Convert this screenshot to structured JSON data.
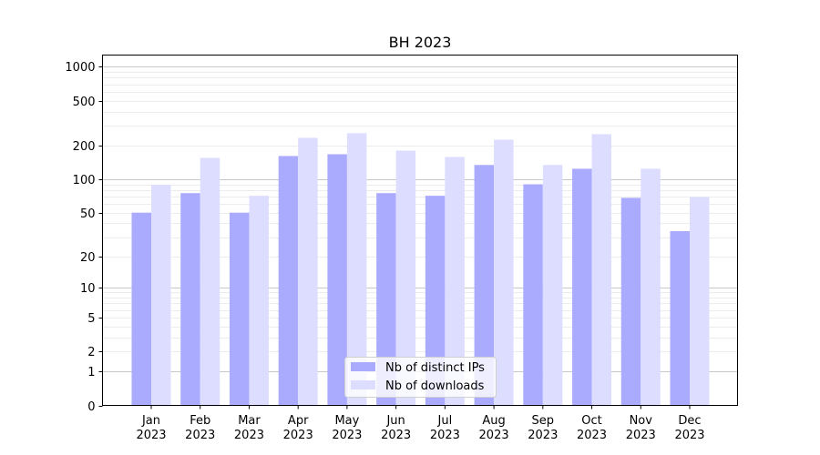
{
  "chart_data": {
    "type": "bar",
    "title": "BH 2023",
    "xlabel": "",
    "ylabel": "",
    "yscale": "log10(y+1)",
    "ylim": [
      0,
      1270
    ],
    "yticks": [
      0,
      1,
      2,
      5,
      10,
      20,
      50,
      100,
      200,
      500,
      1000
    ],
    "grid": true,
    "legend_position": "bottom-center",
    "categories": [
      "Jan\n2023",
      "Feb\n2023",
      "Mar\n2023",
      "Apr\n2023",
      "May\n2023",
      "Jun\n2023",
      "Jul\n2023",
      "Aug\n2023",
      "Sep\n2023",
      "Oct\n2023",
      "Nov\n2023",
      "Dec\n2023"
    ],
    "series": [
      {
        "name": "Nb of distinct IPs",
        "color": "#aaaaff",
        "values": [
          50,
          75,
          50,
          161,
          167,
          75,
          71,
          134,
          90,
          124,
          68,
          34
        ]
      },
      {
        "name": "Nb of downloads",
        "color": "#ddddff",
        "values": [
          89,
          155,
          71,
          234,
          257,
          180,
          158,
          225,
          134,
          252,
          124,
          69
        ]
      }
    ]
  }
}
